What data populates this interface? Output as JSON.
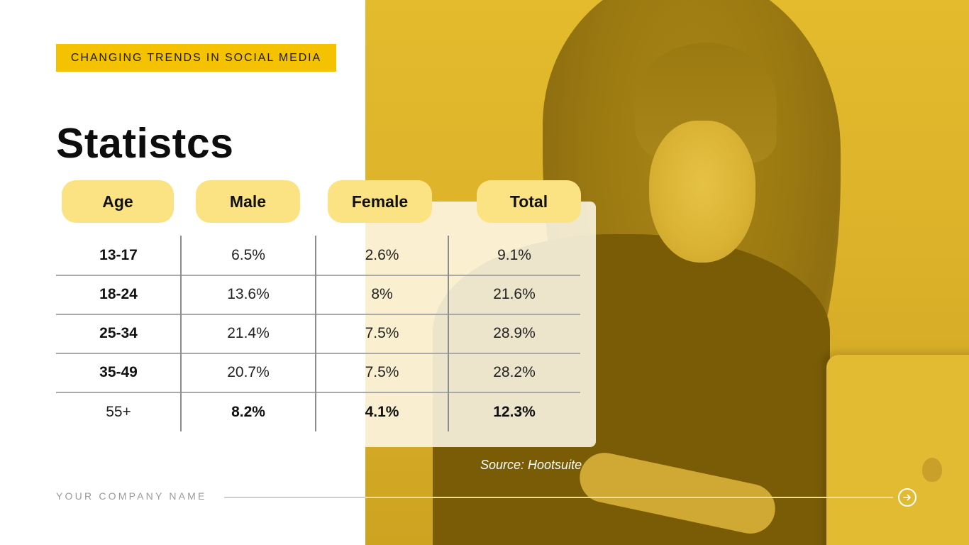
{
  "tag": "CHANGING TRENDS IN SOCIAL MEDIA",
  "title": "Statistcs",
  "table": {
    "headers": [
      "Age",
      "Male",
      "Female",
      "Total"
    ],
    "rows": [
      [
        "13-17",
        "6.5%",
        "2.6%",
        "9.1%"
      ],
      [
        "18-24",
        "13.6%",
        "8%",
        "21.6%"
      ],
      [
        "25-34",
        "21.4%",
        "7.5%",
        "28.9%"
      ],
      [
        "35-49",
        "20.7%",
        "7.5%",
        "28.2%"
      ],
      [
        "55+",
        "8.2%",
        "4.1%",
        "12.3%"
      ]
    ]
  },
  "source": "Source: Hootsuite",
  "footer": {
    "company": "YOUR COMPANY NAME",
    "next_icon": "arrow-right-circle-icon"
  },
  "colors": {
    "accent": "#f5c200",
    "pill": "#fbe384",
    "photo_overlay": "#e3bb2c"
  }
}
